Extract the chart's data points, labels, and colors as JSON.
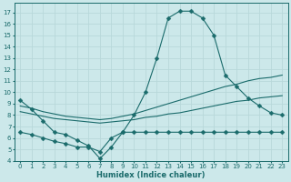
{
  "xlabel": "Humidex (Indice chaleur)",
  "bg_color": "#cce8ea",
  "line_color": "#1a6b6b",
  "grid_color": "#b8d8da",
  "xlim": [
    -0.5,
    23.5
  ],
  "ylim": [
    4,
    17.8
  ],
  "yticks": [
    4,
    5,
    6,
    7,
    8,
    9,
    10,
    11,
    12,
    13,
    14,
    15,
    16,
    17
  ],
  "xticks": [
    0,
    1,
    2,
    3,
    4,
    5,
    6,
    7,
    8,
    9,
    10,
    11,
    12,
    13,
    14,
    15,
    16,
    17,
    18,
    19,
    20,
    21,
    22,
    23
  ],
  "line1_x": [
    0,
    1,
    2,
    3,
    4,
    5,
    6,
    7,
    8,
    9,
    10,
    11,
    12,
    13,
    14,
    15,
    16,
    17,
    18,
    19,
    20,
    21,
    22,
    23
  ],
  "line1_y": [
    9.3,
    8.5,
    7.5,
    6.5,
    6.3,
    5.8,
    5.3,
    4.2,
    5.2,
    6.5,
    8.0,
    10.0,
    13.0,
    16.5,
    17.1,
    17.1,
    16.5,
    15.0,
    11.5,
    10.5,
    9.5,
    8.8,
    8.2,
    8.0
  ],
  "line2_x": [
    0,
    1,
    2,
    3,
    4,
    5,
    6,
    7,
    8,
    9,
    10,
    11,
    12,
    13,
    14,
    15,
    16,
    17,
    18,
    19,
    20,
    21,
    22,
    23
  ],
  "line2_y": [
    8.8,
    8.6,
    8.3,
    8.1,
    7.9,
    7.8,
    7.7,
    7.6,
    7.7,
    7.9,
    8.1,
    8.4,
    8.7,
    9.0,
    9.3,
    9.6,
    9.9,
    10.2,
    10.5,
    10.7,
    11.0,
    11.2,
    11.3,
    11.5
  ],
  "line3_x": [
    0,
    1,
    2,
    3,
    4,
    5,
    6,
    7,
    8,
    9,
    10,
    11,
    12,
    13,
    14,
    15,
    16,
    17,
    18,
    19,
    20,
    21,
    22,
    23
  ],
  "line3_y": [
    8.3,
    8.1,
    7.9,
    7.7,
    7.6,
    7.5,
    7.4,
    7.3,
    7.4,
    7.5,
    7.6,
    7.8,
    7.9,
    8.1,
    8.2,
    8.4,
    8.6,
    8.8,
    9.0,
    9.2,
    9.3,
    9.5,
    9.6,
    9.7
  ],
  "line4_x": [
    0,
    1,
    2,
    3,
    4,
    5,
    6,
    7,
    8,
    9,
    10,
    11,
    12,
    13,
    14,
    15,
    16,
    17,
    18,
    19,
    20,
    21,
    22,
    23
  ],
  "line4_y": [
    6.5,
    6.3,
    6.0,
    5.7,
    5.5,
    5.2,
    5.2,
    4.8,
    6.0,
    6.5,
    6.5,
    6.5,
    6.5,
    6.5,
    6.5,
    6.5,
    6.5,
    6.5,
    6.5,
    6.5,
    6.5,
    6.5,
    6.5,
    6.5
  ],
  "marker": "D",
  "markersize": 2.5,
  "lw": 0.8
}
